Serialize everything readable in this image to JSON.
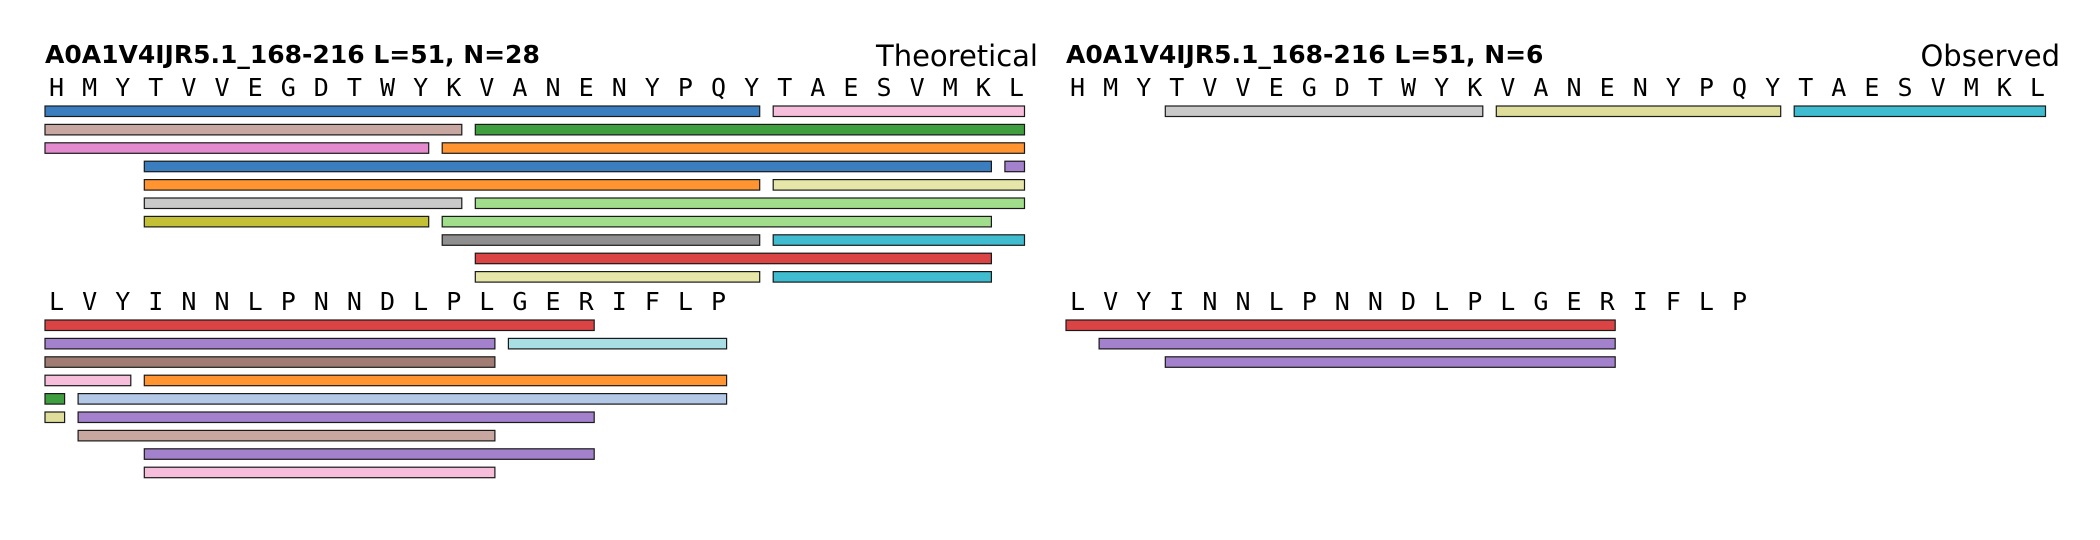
{
  "colors": {
    "blue": "#3a7ebf",
    "pink": "#f7bedb",
    "tan": "#c9a7a1",
    "green": "#3f9f3f",
    "orchid": "#e48bd0",
    "orange": "#ff9431",
    "purple": "#a381cd",
    "cream": "#e6e6a9",
    "lightgray": "#c9c9c9",
    "lightgreen": "#a1de8c",
    "olive": "#c3c035",
    "gray": "#8f8f8f",
    "cyan": "#3fbccf",
    "red": "#db4444",
    "paleCyan": "#a8dfe5",
    "brown": "#a17c72",
    "lightblue": "#b2c8e6",
    "khaki": "#dede9a"
  },
  "panels": [
    {
      "id": "theoretical",
      "title": "A0A1V4IJR5.1_168-216  L=51, N=28",
      "mode_label": "Theoretical",
      "rows": [
        {
          "residues": [
            "H",
            "M",
            "Y",
            "T",
            "V",
            "V",
            "E",
            "G",
            "D",
            "T",
            "W",
            "Y",
            "K",
            "V",
            "A",
            "N",
            "E",
            "N",
            "Y",
            "P",
            "Q",
            "Y",
            "T",
            "A",
            "E",
            "S",
            "V",
            "M",
            "K",
            "L"
          ],
          "peptides": [
            {
              "start": 0,
              "end": 21,
              "level": 0,
              "color": "blue"
            },
            {
              "start": 22,
              "end": 29,
              "level": 0,
              "color": "pink"
            },
            {
              "start": 0,
              "end": 12,
              "level": 1,
              "color": "tan"
            },
            {
              "start": 13,
              "end": 29,
              "level": 1,
              "color": "green"
            },
            {
              "start": 0,
              "end": 11,
              "level": 2,
              "color": "orchid"
            },
            {
              "start": 12,
              "end": 29,
              "level": 2,
              "color": "orange"
            },
            {
              "start": 3,
              "end": 28,
              "level": 3,
              "color": "blue"
            },
            {
              "start": 29,
              "end": 29,
              "level": 3,
              "color": "purple"
            },
            {
              "start": 3,
              "end": 21,
              "level": 4,
              "color": "orange"
            },
            {
              "start": 22,
              "end": 29,
              "level": 4,
              "color": "cream"
            },
            {
              "start": 3,
              "end": 12,
              "level": 5,
              "color": "lightgray"
            },
            {
              "start": 13,
              "end": 29,
              "level": 5,
              "color": "lightgreen"
            },
            {
              "start": 3,
              "end": 11,
              "level": 6,
              "color": "olive"
            },
            {
              "start": 12,
              "end": 28,
              "level": 6,
              "color": "lightgreen"
            },
            {
              "start": 12,
              "end": 21,
              "level": 7,
              "color": "gray"
            },
            {
              "start": 22,
              "end": 29,
              "level": 7,
              "color": "cyan"
            },
            {
              "start": 13,
              "end": 28,
              "level": 8,
              "color": "red"
            },
            {
              "start": 13,
              "end": 21,
              "level": 9,
              "color": "cream"
            },
            {
              "start": 22,
              "end": 28,
              "level": 9,
              "color": "cyan"
            }
          ]
        },
        {
          "residues": [
            "L",
            "V",
            "Y",
            "I",
            "N",
            "N",
            "L",
            "P",
            "N",
            "N",
            "D",
            "L",
            "P",
            "L",
            "G",
            "E",
            "R",
            "I",
            "F",
            "L",
            "P"
          ],
          "peptides": [
            {
              "start": 0,
              "end": 16,
              "level": 0,
              "color": "red"
            },
            {
              "start": 0,
              "end": 13,
              "level": 1,
              "color": "purple"
            },
            {
              "start": 14,
              "end": 20,
              "level": 1,
              "color": "paleCyan"
            },
            {
              "start": 0,
              "end": 13,
              "level": 2,
              "color": "brown"
            },
            {
              "start": 0,
              "end": 2,
              "level": 3,
              "color": "pink"
            },
            {
              "start": 3,
              "end": 20,
              "level": 3,
              "color": "orange"
            },
            {
              "start": 0,
              "end": 0,
              "level": 4,
              "color": "green"
            },
            {
              "start": 1,
              "end": 20,
              "level": 4,
              "color": "lightblue"
            },
            {
              "start": 0,
              "end": 0,
              "level": 5,
              "color": "khaki"
            },
            {
              "start": 1,
              "end": 16,
              "level": 5,
              "color": "purple"
            },
            {
              "start": 1,
              "end": 13,
              "level": 6,
              "color": "tan"
            },
            {
              "start": 3,
              "end": 16,
              "level": 7,
              "color": "purple"
            },
            {
              "start": 3,
              "end": 13,
              "level": 8,
              "color": "pink"
            }
          ]
        }
      ]
    },
    {
      "id": "observed",
      "title": "A0A1V4IJR5.1_168-216  L=51, N=6",
      "mode_label": "Observed",
      "rows": [
        {
          "residues": [
            "H",
            "M",
            "Y",
            "T",
            "V",
            "V",
            "E",
            "G",
            "D",
            "T",
            "W",
            "Y",
            "K",
            "V",
            "A",
            "N",
            "E",
            "N",
            "Y",
            "P",
            "Q",
            "Y",
            "T",
            "A",
            "E",
            "S",
            "V",
            "M",
            "K",
            "L"
          ],
          "peptides": [
            {
              "start": 3,
              "end": 12,
              "level": 0,
              "color": "lightgray"
            },
            {
              "start": 13,
              "end": 21,
              "level": 0,
              "color": "khaki"
            },
            {
              "start": 22,
              "end": 29,
              "level": 0,
              "color": "cyan"
            }
          ]
        },
        {
          "residues": [
            "L",
            "V",
            "Y",
            "I",
            "N",
            "N",
            "L",
            "P",
            "N",
            "N",
            "D",
            "L",
            "P",
            "L",
            "G",
            "E",
            "R",
            "I",
            "F",
            "L",
            "P"
          ],
          "peptides": [
            {
              "start": 0,
              "end": 16,
              "level": 0,
              "color": "red"
            },
            {
              "start": 1,
              "end": 16,
              "level": 1,
              "color": "purple"
            },
            {
              "start": 3,
              "end": 16,
              "level": 2,
              "color": "purple"
            }
          ]
        }
      ]
    }
  ]
}
